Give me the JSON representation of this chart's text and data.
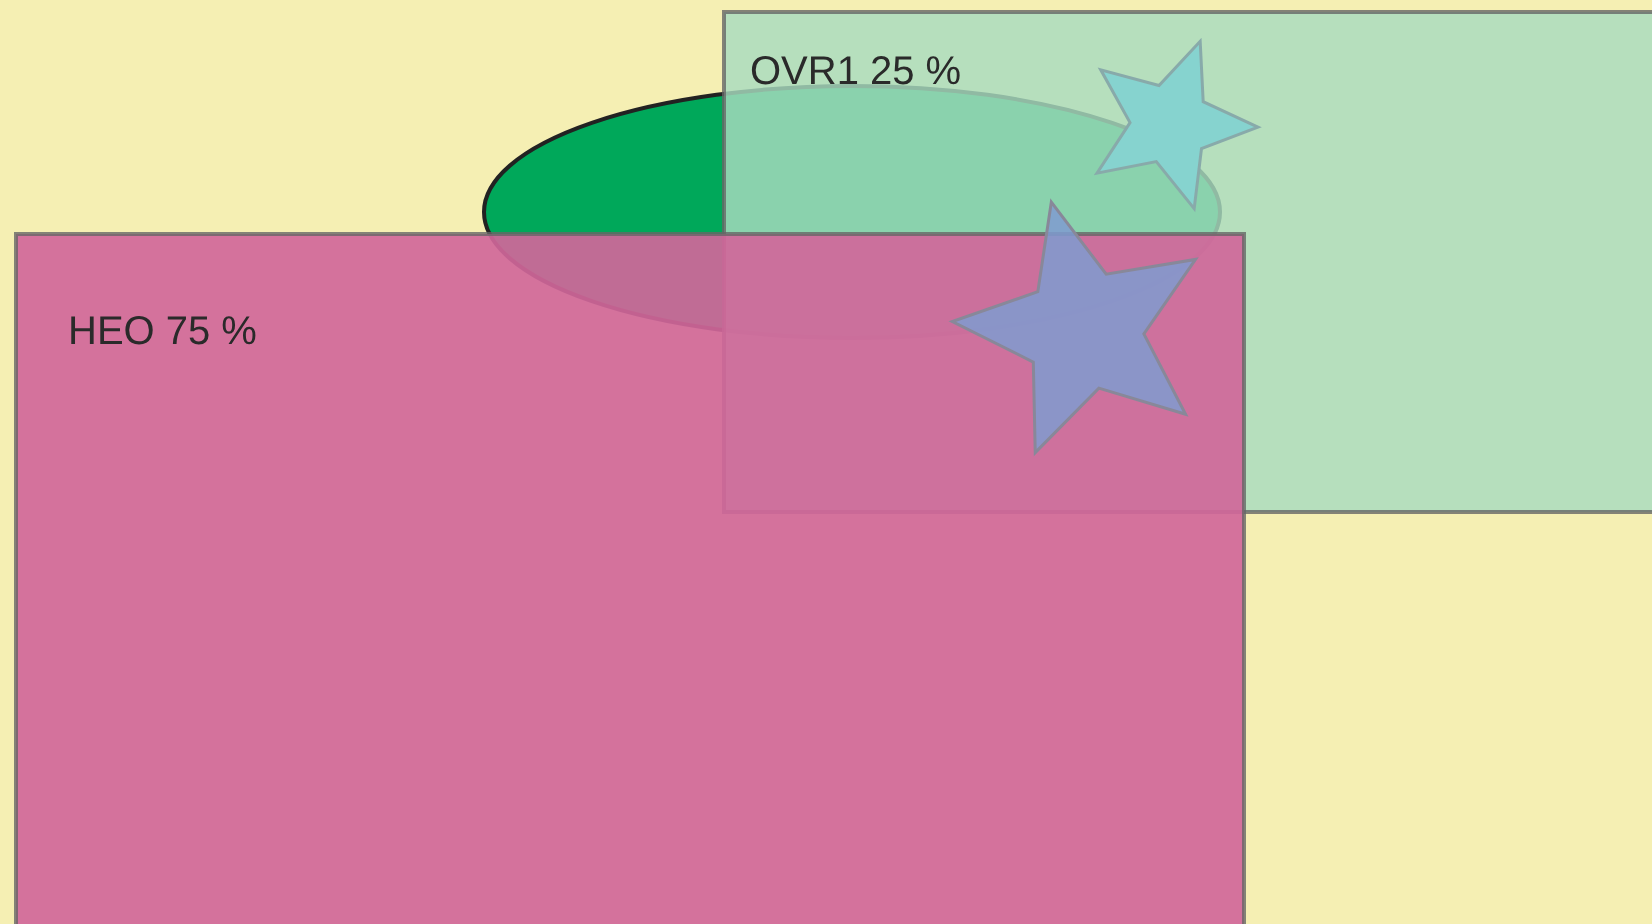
{
  "chart_data": {
    "type": "other",
    "categories": [
      "HEO",
      "OVR1"
    ],
    "values": [
      75,
      25
    ],
    "value_labels": [
      "75 %",
      "25 %"
    ],
    "colors": [
      "#d0679a",
      "#a8dcc0"
    ]
  }
}
